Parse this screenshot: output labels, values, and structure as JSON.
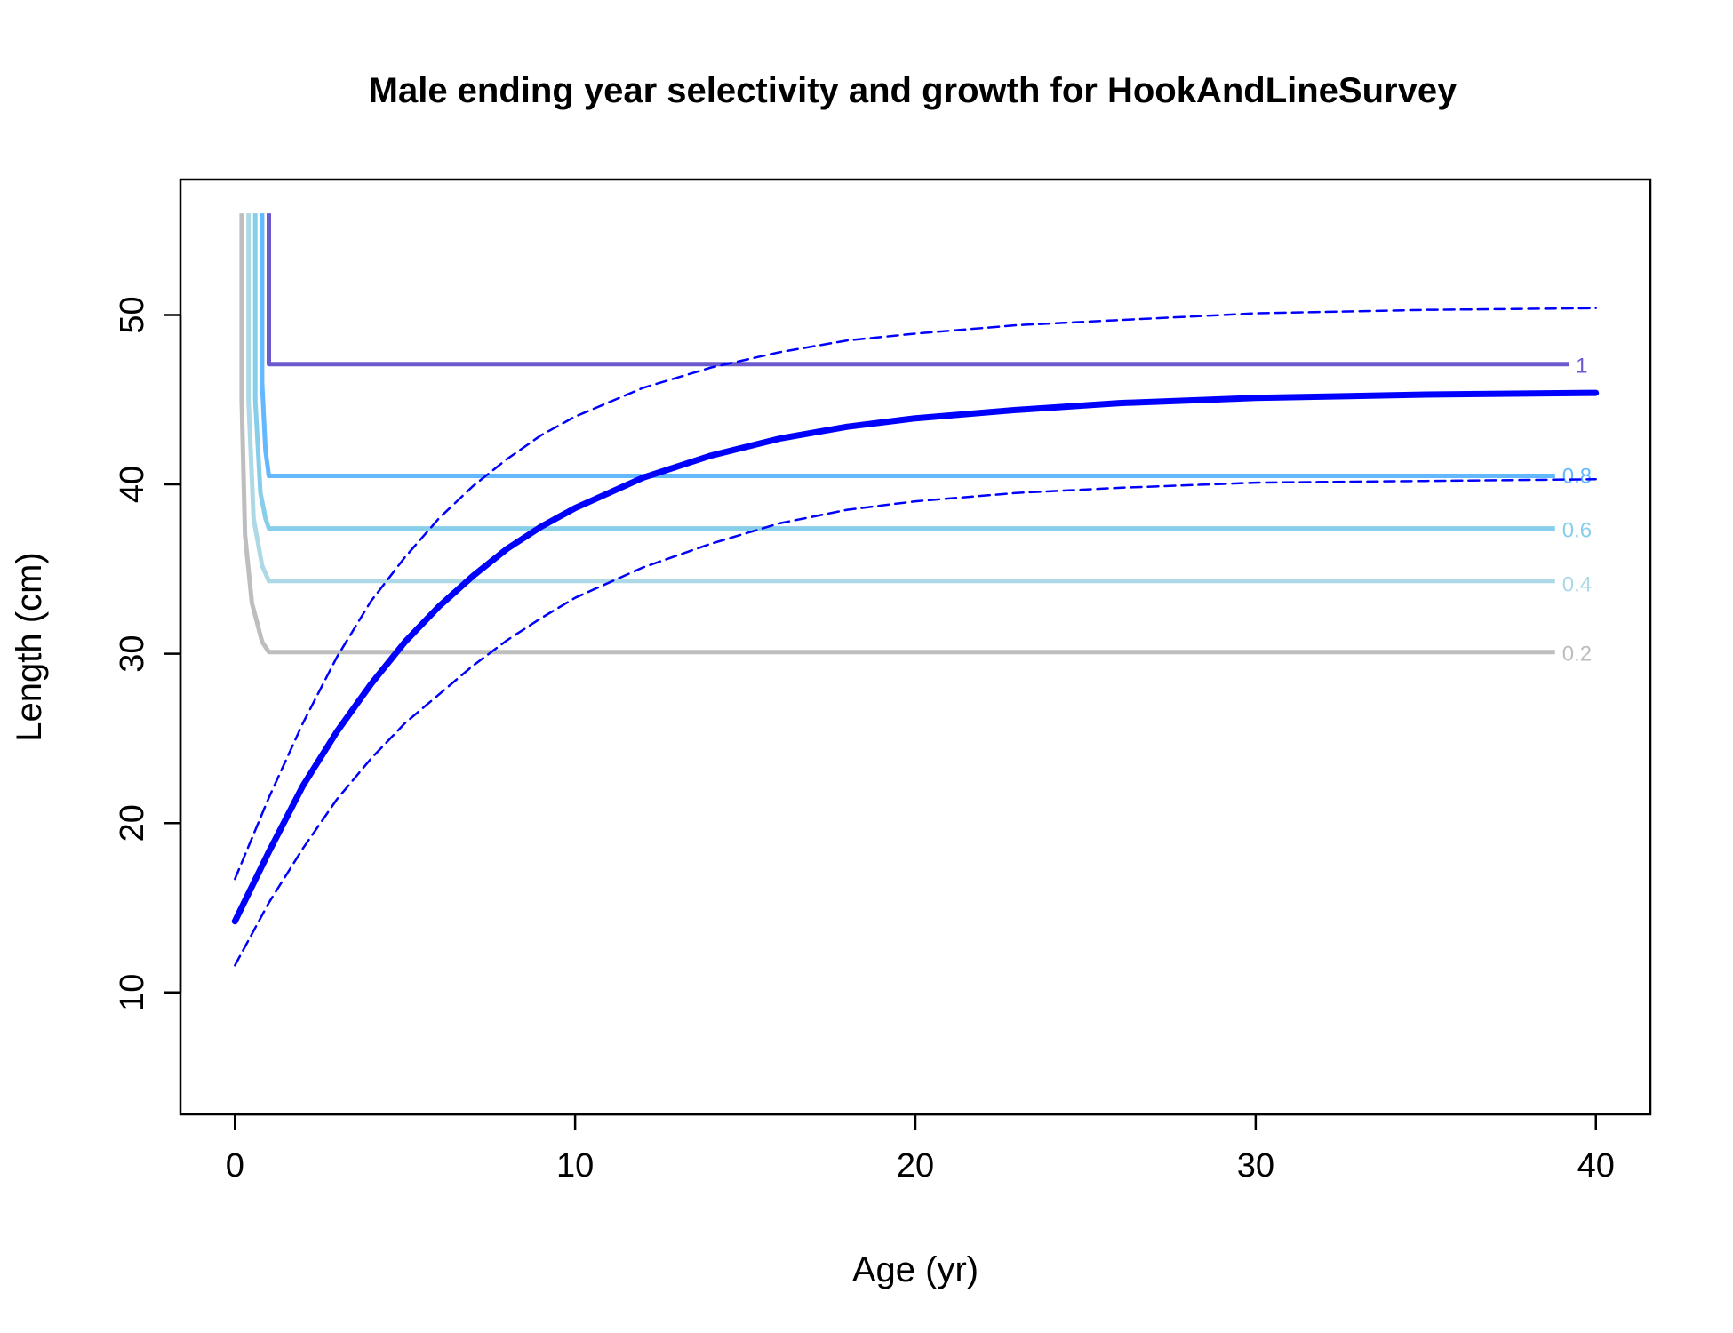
{
  "chart_data": {
    "type": "line",
    "title": "Male ending year selectivity and growth for HookAndLineSurvey",
    "xlabel": "Age (yr)",
    "ylabel": "Length (cm)",
    "xlim": [
      -1.6,
      41.6
    ],
    "ylim": [
      2.8,
      58.0
    ],
    "xticks": [
      0,
      10,
      20,
      30,
      40
    ],
    "yticks": [
      10,
      20,
      30,
      40,
      50
    ],
    "grid": false,
    "contours": [
      {
        "level": "0.2",
        "color": "#BEBEBE",
        "label_y": 30.0,
        "points": [
          [
            0.2,
            56.0
          ],
          [
            0.2,
            45.0
          ],
          [
            0.3,
            37.0
          ],
          [
            0.5,
            33.0
          ],
          [
            0.8,
            30.7
          ],
          [
            1.0,
            30.1
          ],
          [
            38.8,
            30.1
          ]
        ]
      },
      {
        "level": "0.4",
        "color": "#ADD8E6",
        "label_y": 34.1,
        "points": [
          [
            0.4,
            56.0
          ],
          [
            0.4,
            45.0
          ],
          [
            0.55,
            38.0
          ],
          [
            0.8,
            35.2
          ],
          [
            1.0,
            34.3
          ],
          [
            38.8,
            34.3
          ]
        ]
      },
      {
        "level": "0.6",
        "color": "#87CEEB",
        "label_y": 37.3,
        "points": [
          [
            0.6,
            56.0
          ],
          [
            0.6,
            45.0
          ],
          [
            0.75,
            39.5
          ],
          [
            0.9,
            38.0
          ],
          [
            1.0,
            37.4
          ],
          [
            38.8,
            37.4
          ]
        ]
      },
      {
        "level": "0.8",
        "color": "#63B8FF",
        "label_y": 40.5,
        "points": [
          [
            0.8,
            56.0
          ],
          [
            0.8,
            46.0
          ],
          [
            0.9,
            42.0
          ],
          [
            1.0,
            40.5
          ],
          [
            38.8,
            40.5
          ]
        ]
      },
      {
        "level": "1",
        "color": "#6A5ACD",
        "label_y": 47.0,
        "points": [
          [
            1.0,
            56.0
          ],
          [
            1.0,
            47.1
          ],
          [
            39.2,
            47.1
          ]
        ]
      }
    ],
    "series": [
      {
        "style": "solid-thick",
        "color": "#0000FF",
        "x": [
          0,
          1,
          2,
          3,
          4,
          5,
          6,
          7,
          8,
          9,
          10,
          12,
          14,
          16,
          18,
          20,
          23,
          26,
          30,
          35,
          40
        ],
        "y": [
          14.2,
          18.3,
          22.2,
          25.4,
          28.2,
          30.7,
          32.8,
          34.6,
          36.2,
          37.5,
          38.6,
          40.4,
          41.7,
          42.7,
          43.4,
          43.9,
          44.4,
          44.8,
          45.1,
          45.3,
          45.4
        ]
      },
      {
        "style": "dashed",
        "color": "#0000FF",
        "x": [
          0,
          1,
          2,
          3,
          4,
          5,
          6,
          7,
          8,
          9,
          10,
          12,
          14,
          16,
          18,
          20,
          23,
          26,
          30,
          35,
          40
        ],
        "y": [
          16.7,
          21.5,
          25.9,
          29.8,
          33.1,
          35.7,
          38.0,
          39.9,
          41.5,
          42.9,
          44.0,
          45.7,
          46.9,
          47.8,
          48.5,
          48.9,
          49.4,
          49.7,
          50.1,
          50.3,
          50.4
        ]
      },
      {
        "style": "dashed",
        "color": "#0000FF",
        "x": [
          0,
          1,
          2,
          3,
          4,
          5,
          6,
          7,
          8,
          9,
          10,
          12,
          14,
          16,
          18,
          20,
          23,
          26,
          30,
          35,
          40
        ],
        "y": [
          11.6,
          15.3,
          18.5,
          21.4,
          23.8,
          25.9,
          27.6,
          29.3,
          30.8,
          32.1,
          33.3,
          35.1,
          36.5,
          37.7,
          38.5,
          39.0,
          39.5,
          39.8,
          40.1,
          40.2,
          40.3
        ]
      }
    ]
  }
}
